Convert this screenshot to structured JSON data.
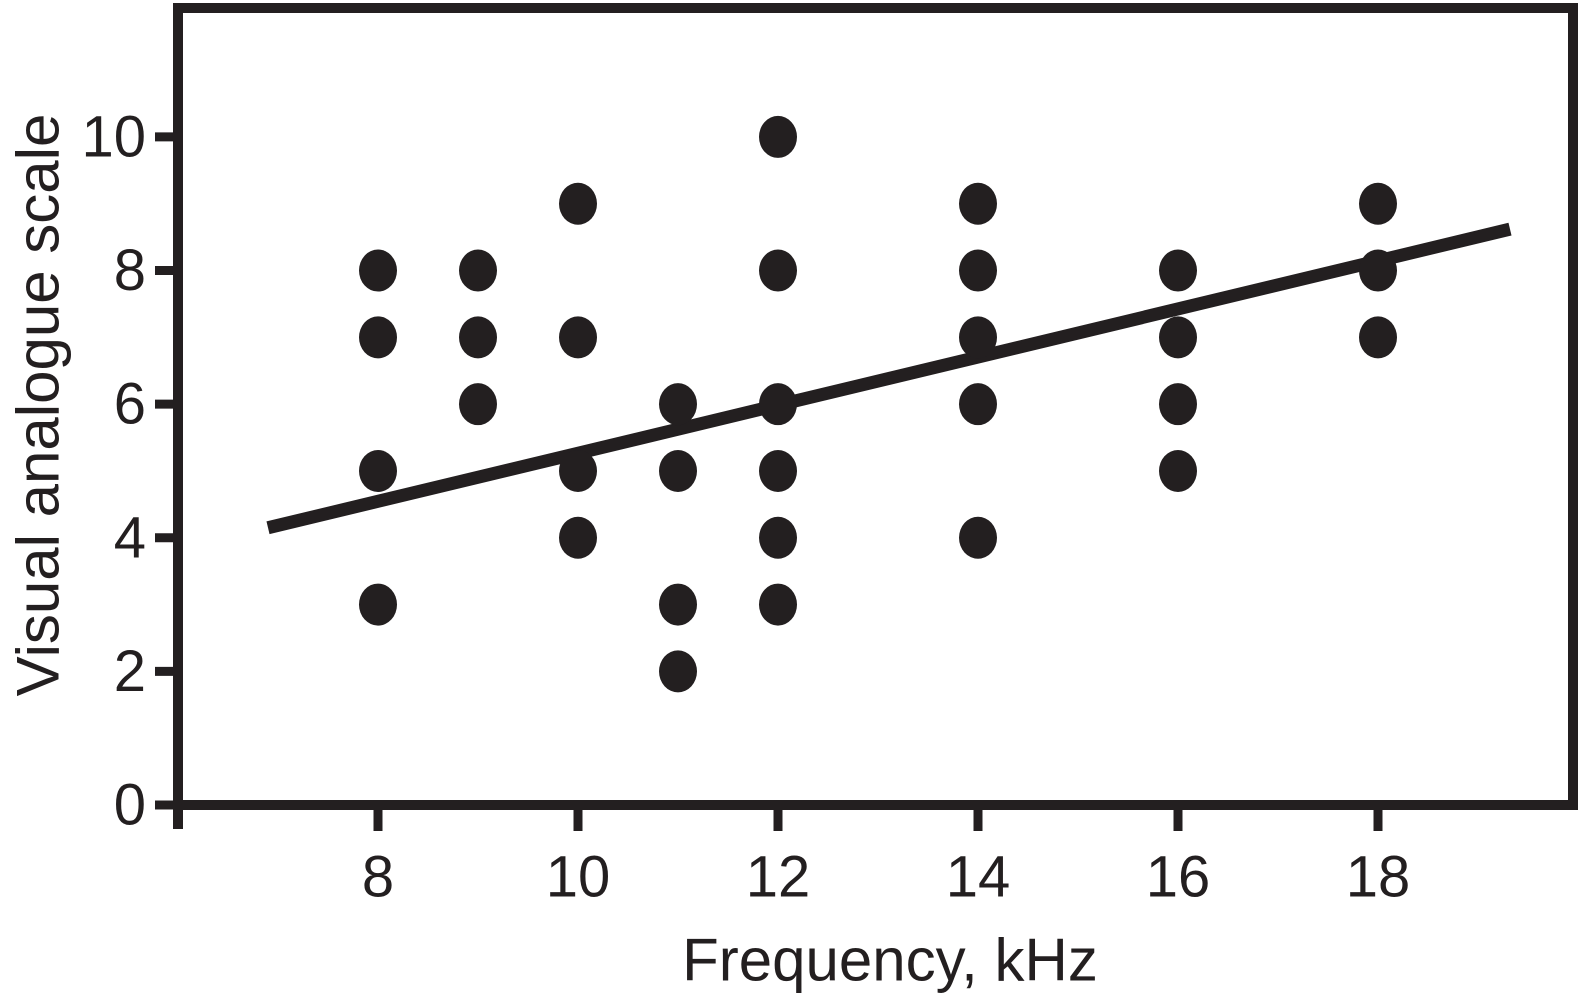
{
  "figure": {
    "background_color": "#ffffff",
    "ink_color": "#231f20"
  },
  "chart_data": {
    "type": "scatter",
    "title": "",
    "xlabel": "Frequency, kHz",
    "ylabel": "Visual analogue scale",
    "xlim": [
      6.0,
      19.95
    ],
    "ylim": [
      0,
      11.93
    ],
    "x_ticks": [
      8,
      10,
      12,
      14,
      16,
      18
    ],
    "y_ticks": [
      0,
      2,
      4,
      6,
      8,
      10
    ],
    "grid": false,
    "legend": null,
    "marker": {
      "shape": "circle",
      "radius_px": 20,
      "color": "#231f20"
    },
    "points": [
      {
        "x": 8,
        "y": 8
      },
      {
        "x": 8,
        "y": 7
      },
      {
        "x": 8,
        "y": 5
      },
      {
        "x": 8,
        "y": 3
      },
      {
        "x": 9,
        "y": 8
      },
      {
        "x": 9,
        "y": 7
      },
      {
        "x": 9,
        "y": 6
      },
      {
        "x": 10,
        "y": 9
      },
      {
        "x": 10,
        "y": 7
      },
      {
        "x": 10,
        "y": 5
      },
      {
        "x": 10,
        "y": 4
      },
      {
        "x": 11,
        "y": 6
      },
      {
        "x": 11,
        "y": 5
      },
      {
        "x": 11,
        "y": 3
      },
      {
        "x": 11,
        "y": 2
      },
      {
        "x": 12,
        "y": 10
      },
      {
        "x": 12,
        "y": 8
      },
      {
        "x": 12,
        "y": 6
      },
      {
        "x": 12,
        "y": 5
      },
      {
        "x": 12,
        "y": 4
      },
      {
        "x": 12,
        "y": 3
      },
      {
        "x": 14,
        "y": 9
      },
      {
        "x": 14,
        "y": 8
      },
      {
        "x": 14,
        "y": 7
      },
      {
        "x": 14,
        "y": 6
      },
      {
        "x": 14,
        "y": 4
      },
      {
        "x": 16,
        "y": 8
      },
      {
        "x": 16,
        "y": 7
      },
      {
        "x": 16,
        "y": 6
      },
      {
        "x": 16,
        "y": 5
      },
      {
        "x": 18,
        "y": 9
      },
      {
        "x": 18,
        "y": 8
      },
      {
        "x": 18,
        "y": 7
      }
    ],
    "trendline": {
      "x1": 6.9,
      "y1": 4.15,
      "x2": 19.32,
      "y2": 8.62
    }
  }
}
